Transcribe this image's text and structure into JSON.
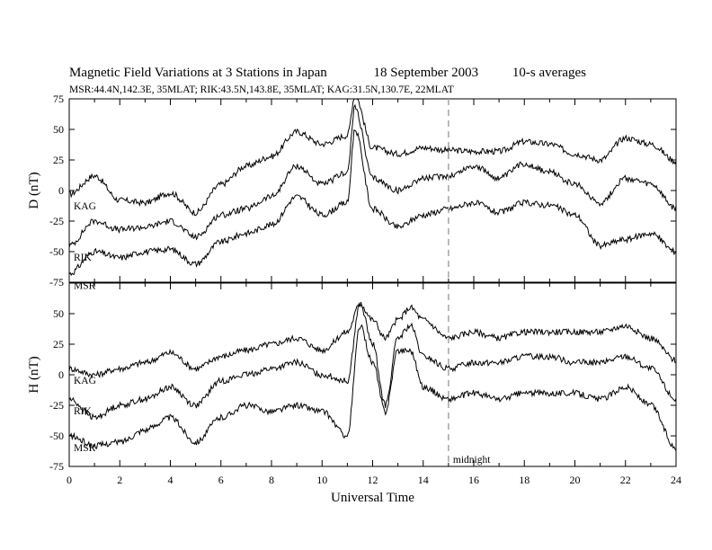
{
  "header": {
    "title": "Magnetic Field Variations at 3 Stations in Japan",
    "date": "18 September 2003",
    "averaging": "10-s averages",
    "stations": "MSR:44.4N,142.3E, 35MLAT;   RIK:43.5N,143.8E, 35MLAT;   KAG:31.5N,130.7E, 22MLAT"
  },
  "chart_data": [
    {
      "type": "line",
      "panel": "top",
      "ylabel": "D (nT)",
      "ylim": [
        -75,
        75
      ],
      "yticks": [
        75,
        50,
        25,
        0,
        -25,
        -50,
        -75
      ],
      "xlim": [
        0,
        24
      ],
      "xticks": [
        0,
        2,
        4,
        6,
        8,
        10,
        12,
        14,
        16,
        18,
        20,
        22,
        24
      ],
      "series": [
        {
          "name": "KAG",
          "x": [
            0,
            1,
            2,
            3,
            4,
            5,
            6,
            7,
            8,
            9,
            10,
            11,
            11.3,
            12,
            13,
            14,
            15,
            16,
            17,
            18,
            19,
            20,
            21,
            22,
            23,
            24
          ],
          "values": [
            -3,
            12,
            -8,
            -10,
            -2,
            -18,
            5,
            20,
            28,
            48,
            38,
            45,
            78,
            35,
            30,
            35,
            33,
            32,
            32,
            40,
            38,
            30,
            25,
            43,
            38,
            24
          ]
        },
        {
          "name": "RIK",
          "x": [
            0,
            1,
            2,
            3,
            4,
            5,
            6,
            7,
            8,
            9,
            10,
            11,
            11.3,
            12,
            13,
            14,
            15,
            16,
            17,
            18,
            19,
            20,
            21,
            22,
            23,
            24
          ],
          "values": [
            -45,
            -25,
            -32,
            -30,
            -25,
            -38,
            -20,
            -15,
            -5,
            20,
            5,
            15,
            68,
            10,
            0,
            10,
            12,
            20,
            10,
            22,
            15,
            5,
            -10,
            10,
            5,
            -15
          ]
        },
        {
          "name": "MSR",
          "x": [
            0,
            1,
            2,
            3,
            4,
            5,
            6,
            7,
            8,
            9,
            10,
            11,
            11.3,
            12,
            13,
            14,
            15,
            16,
            17,
            18,
            19,
            20,
            21,
            22,
            23,
            24
          ],
          "values": [
            -68,
            -50,
            -55,
            -50,
            -48,
            -60,
            -42,
            -35,
            -28,
            -5,
            -20,
            -10,
            50,
            -15,
            -30,
            -20,
            -15,
            -10,
            -18,
            -10,
            -12,
            -20,
            -45,
            -40,
            -35,
            -50
          ]
        }
      ],
      "annotations": []
    },
    {
      "type": "line",
      "panel": "bottom",
      "ylabel": "H (nT)",
      "xlabel": "Universal Time",
      "ylim": [
        -75,
        75
      ],
      "yticks": [
        50,
        25,
        0,
        -25,
        -50,
        -75
      ],
      "xlim": [
        0,
        24
      ],
      "xticks": [
        0,
        2,
        4,
        6,
        8,
        10,
        12,
        14,
        16,
        18,
        20,
        22,
        24
      ],
      "series": [
        {
          "name": "KAG",
          "x": [
            0,
            1,
            2,
            3,
            4,
            5,
            6,
            7,
            8,
            9,
            10,
            11,
            11.5,
            12,
            12.5,
            13,
            13.5,
            14,
            15,
            16,
            17,
            18,
            19,
            20,
            21,
            22,
            23,
            24
          ],
          "values": [
            5,
            0,
            5,
            10,
            18,
            5,
            15,
            20,
            25,
            30,
            20,
            35,
            58,
            45,
            30,
            45,
            55,
            45,
            30,
            35,
            30,
            35,
            35,
            35,
            35,
            40,
            30,
            12
          ]
        },
        {
          "name": "RIK",
          "x": [
            0,
            1,
            2,
            3,
            4,
            5,
            6,
            7,
            8,
            9,
            10,
            11,
            11.5,
            12,
            12.5,
            13,
            13.5,
            14,
            15,
            16,
            17,
            18,
            19,
            20,
            21,
            22,
            23,
            24
          ],
          "values": [
            -20,
            -35,
            -25,
            -20,
            -10,
            -25,
            -5,
            0,
            5,
            10,
            0,
            -5,
            58,
            25,
            -25,
            30,
            40,
            15,
            5,
            10,
            10,
            15,
            15,
            10,
            10,
            15,
            5,
            -20
          ]
        },
        {
          "name": "MSR",
          "x": [
            0,
            1,
            2,
            3,
            4,
            5,
            6,
            7,
            8,
            9,
            10,
            11,
            11.5,
            12,
            12.5,
            13,
            13.5,
            14,
            15,
            16,
            17,
            18,
            19,
            20,
            21,
            22,
            23,
            24
          ],
          "values": [
            -50,
            -58,
            -55,
            -45,
            -35,
            -55,
            -35,
            -25,
            -30,
            -25,
            -30,
            -50,
            40,
            10,
            -30,
            20,
            20,
            -10,
            -20,
            -15,
            -20,
            -15,
            -15,
            -15,
            -20,
            -10,
            -25,
            -60
          ]
        }
      ],
      "annotations": [
        {
          "text": "midnight",
          "x": 15
        }
      ]
    }
  ],
  "midline_x": 15,
  "colors": {
    "line": "#000000",
    "dash": "#aaaaaa"
  }
}
